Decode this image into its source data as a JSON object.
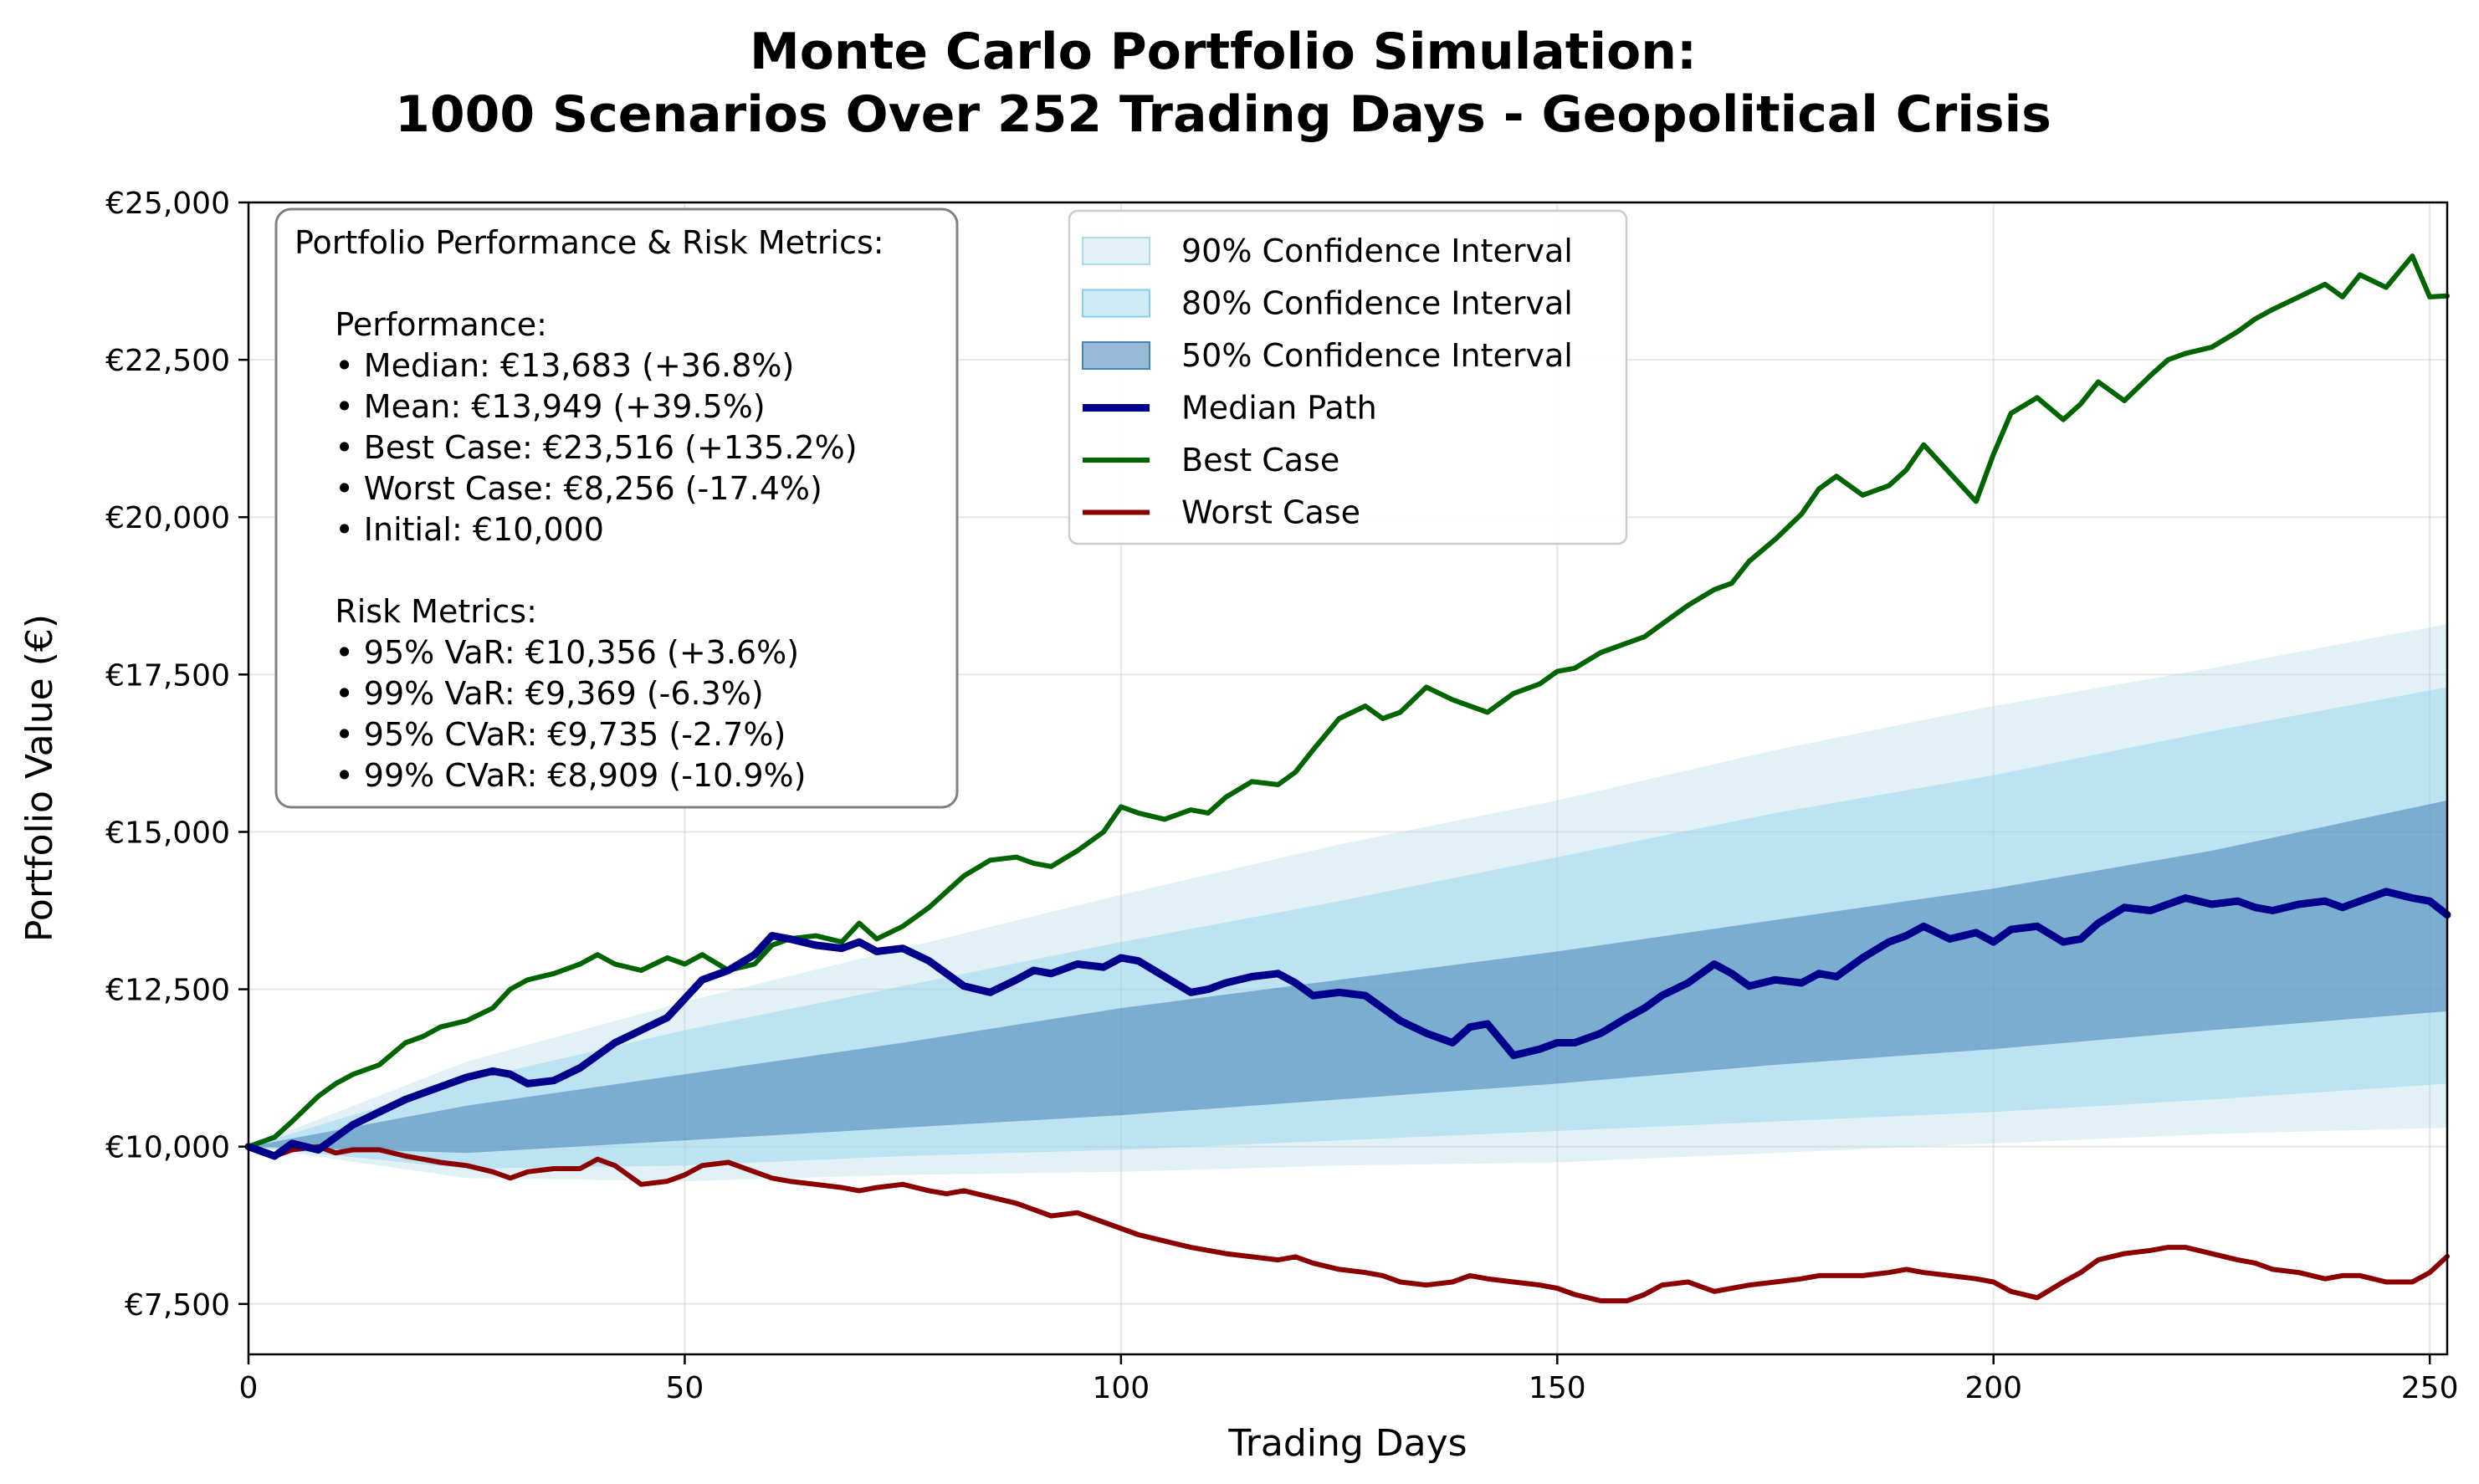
{
  "chart_data": {
    "type": "line",
    "title_lines": [
      "Monte Carlo Portfolio Simulation:",
      "1000 Scenarios Over 252 Trading Days - Geopolitical Crisis"
    ],
    "xlabel": "Trading Days",
    "ylabel": "Portfolio Value (€)",
    "xlim": [
      0,
      252
    ],
    "ylim": [
      6700,
      25000
    ],
    "x_ticks": [
      0,
      50,
      100,
      150,
      200,
      250
    ],
    "x_tick_labels": [
      "0",
      "50",
      "100",
      "150",
      "200",
      "250"
    ],
    "y_ticks": [
      7500,
      10000,
      12500,
      15000,
      17500,
      20000,
      22500,
      25000
    ],
    "y_tick_labels": [
      "€7,500",
      "€10,000",
      "€12,500",
      "€15,000",
      "€17,500",
      "€20,000",
      "€22,500",
      "€25,000"
    ],
    "grid": true,
    "legend_position": "upper-center",
    "legend": [
      {
        "label": "90% Confidence Interval",
        "kind": "band",
        "color": "#add8e6",
        "opacity": 0.35
      },
      {
        "label": "80% Confidence Interval",
        "kind": "band",
        "color": "#87ceeb",
        "opacity": 0.4
      },
      {
        "label": "50% Confidence Interval",
        "kind": "band",
        "color": "#4682b4",
        "opacity": 0.55
      },
      {
        "label": "Median Path",
        "kind": "line",
        "color": "#00008b",
        "width": 9
      },
      {
        "label": "Best Case",
        "kind": "line",
        "color": "#006400",
        "width": 6
      },
      {
        "label": "Worst Case",
        "kind": "line",
        "color": "#8b0000",
        "width": 6
      }
    ],
    "bands": [
      {
        "name": "90% Confidence Interval",
        "color": "#add8e6",
        "opacity": 0.35,
        "x": [
          0,
          25,
          50,
          75,
          100,
          125,
          150,
          175,
          200,
          225,
          252
        ],
        "lower": [
          10000,
          9500,
          9450,
          9550,
          9600,
          9700,
          9750,
          9900,
          10050,
          10200,
          10300
        ],
        "upper": [
          10000,
          11350,
          12300,
          13150,
          14000,
          14800,
          15500,
          16300,
          17000,
          17600,
          18300
        ]
      },
      {
        "name": "80% Confidence Interval",
        "color": "#87ceeb",
        "opacity": 0.4,
        "x": [
          0,
          25,
          50,
          75,
          100,
          125,
          150,
          175,
          200,
          225,
          252
        ],
        "lower": [
          10000,
          9650,
          9700,
          9850,
          9950,
          10100,
          10250,
          10400,
          10550,
          10750,
          11000
        ],
        "upper": [
          10000,
          11050,
          11850,
          12550,
          13250,
          13900,
          14600,
          15300,
          15900,
          16600,
          17300
        ]
      },
      {
        "name": "50% Confidence Interval",
        "color": "#4682b4",
        "opacity": 0.55,
        "x": [
          0,
          25,
          50,
          75,
          100,
          125,
          150,
          175,
          200,
          225,
          252
        ],
        "lower": [
          10000,
          9900,
          10100,
          10300,
          10500,
          10750,
          11000,
          11300,
          11550,
          11850,
          12150
        ],
        "upper": [
          10000,
          10650,
          11150,
          11650,
          12200,
          12650,
          13100,
          13600,
          14100,
          14700,
          15500
        ]
      }
    ],
    "series": [
      {
        "name": "Median Path",
        "color": "#00008b",
        "width": 9,
        "x": [
          0,
          3,
          5,
          8,
          10,
          12,
          15,
          18,
          20,
          22,
          25,
          28,
          30,
          32,
          35,
          38,
          40,
          42,
          45,
          48,
          50,
          52,
          55,
          58,
          60,
          62,
          65,
          68,
          70,
          72,
          75,
          78,
          80,
          82,
          85,
          88,
          90,
          92,
          95,
          98,
          100,
          102,
          105,
          108,
          110,
          112,
          115,
          118,
          120,
          122,
          125,
          128,
          130,
          132,
          135,
          138,
          140,
          142,
          145,
          148,
          150,
          152,
          155,
          158,
          160,
          162,
          165,
          168,
          170,
          172,
          175,
          178,
          180,
          182,
          185,
          188,
          190,
          192,
          195,
          198,
          200,
          202,
          205,
          208,
          210,
          212,
          215,
          218,
          220,
          222,
          225,
          228,
          230,
          232,
          235,
          238,
          240,
          242,
          245,
          248,
          250,
          252
        ],
        "values": [
          10000,
          9850,
          10050,
          9950,
          10150,
          10350,
          10550,
          10750,
          10850,
          10950,
          11100,
          11200,
          11150,
          11000,
          11050,
          11250,
          11450,
          11650,
          11850,
          12050,
          12350,
          12650,
          12800,
          13050,
          13350,
          13300,
          13200,
          13150,
          13250,
          13100,
          13150,
          12950,
          12750,
          12550,
          12450,
          12650,
          12800,
          12750,
          12900,
          12850,
          13000,
          12950,
          12700,
          12450,
          12500,
          12600,
          12700,
          12750,
          12600,
          12400,
          12450,
          12400,
          12200,
          12000,
          11800,
          11650,
          11900,
          11950,
          11450,
          11550,
          11650,
          11650,
          11800,
          12050,
          12200,
          12400,
          12600,
          12900,
          12750,
          12550,
          12650,
          12600,
          12750,
          12700,
          13000,
          13250,
          13350,
          13500,
          13300,
          13400,
          13250,
          13450,
          13500,
          13250,
          13300,
          13550,
          13800,
          13750,
          13850,
          13950,
          13850,
          13900,
          13800,
          13750,
          13850,
          13900,
          13800,
          13900,
          14050,
          13950,
          13900,
          13683
        ]
      },
      {
        "name": "Best Case",
        "color": "#006400",
        "width": 6,
        "x": [
          0,
          3,
          5,
          8,
          10,
          12,
          15,
          18,
          20,
          22,
          25,
          28,
          30,
          32,
          35,
          38,
          40,
          42,
          45,
          48,
          50,
          52,
          55,
          58,
          60,
          62,
          65,
          68,
          70,
          72,
          75,
          78,
          80,
          82,
          85,
          88,
          90,
          92,
          95,
          98,
          100,
          102,
          105,
          108,
          110,
          112,
          115,
          118,
          120,
          122,
          125,
          128,
          130,
          132,
          135,
          138,
          140,
          142,
          145,
          148,
          150,
          152,
          155,
          158,
          160,
          162,
          165,
          168,
          170,
          172,
          175,
          178,
          180,
          182,
          185,
          188,
          190,
          192,
          195,
          198,
          200,
          202,
          205,
          208,
          210,
          212,
          215,
          218,
          220,
          222,
          225,
          228,
          230,
          232,
          235,
          238,
          240,
          242,
          245,
          248,
          250,
          252
        ],
        "values": [
          10000,
          10150,
          10400,
          10800,
          11000,
          11150,
          11300,
          11650,
          11750,
          11900,
          12000,
          12200,
          12500,
          12650,
          12750,
          12900,
          13050,
          12900,
          12800,
          13000,
          12900,
          13050,
          12800,
          12900,
          13200,
          13300,
          13350,
          13250,
          13550,
          13300,
          13500,
          13800,
          14050,
          14300,
          14550,
          14600,
          14500,
          14450,
          14700,
          15000,
          15400,
          15300,
          15200,
          15350,
          15300,
          15550,
          15800,
          15750,
          15950,
          16300,
          16800,
          17000,
          16800,
          16900,
          17300,
          17100,
          17000,
          16900,
          17200,
          17350,
          17550,
          17600,
          17850,
          18000,
          18100,
          18300,
          18600,
          18850,
          18950,
          19300,
          19650,
          20050,
          20450,
          20650,
          20350,
          20500,
          20750,
          21150,
          20700,
          20250,
          21000,
          21650,
          21900,
          21550,
          21800,
          22150,
          21850,
          22250,
          22500,
          22600,
          22700,
          22950,
          23150,
          23300,
          23500,
          23700,
          23500,
          23850,
          23650,
          24150,
          23500,
          23516
        ]
      },
      {
        "name": "Worst Case",
        "color": "#8b0000",
        "width": 6,
        "x": [
          0,
          3,
          5,
          8,
          10,
          12,
          15,
          18,
          20,
          22,
          25,
          28,
          30,
          32,
          35,
          38,
          40,
          42,
          45,
          48,
          50,
          52,
          55,
          58,
          60,
          62,
          65,
          68,
          70,
          72,
          75,
          78,
          80,
          82,
          85,
          88,
          90,
          92,
          95,
          98,
          100,
          102,
          105,
          108,
          110,
          112,
          115,
          118,
          120,
          122,
          125,
          128,
          130,
          132,
          135,
          138,
          140,
          142,
          145,
          148,
          150,
          152,
          155,
          158,
          160,
          162,
          165,
          168,
          170,
          172,
          175,
          178,
          180,
          182,
          185,
          188,
          190,
          192,
          195,
          198,
          200,
          202,
          205,
          208,
          210,
          212,
          215,
          218,
          220,
          222,
          225,
          228,
          230,
          232,
          235,
          238,
          240,
          242,
          245,
          248,
          250,
          252
        ],
        "values": [
          10000,
          9850,
          9950,
          10000,
          9900,
          9950,
          9950,
          9850,
          9800,
          9750,
          9700,
          9600,
          9500,
          9600,
          9650,
          9650,
          9800,
          9700,
          9400,
          9450,
          9550,
          9700,
          9750,
          9600,
          9500,
          9450,
          9400,
          9350,
          9300,
          9350,
          9400,
          9300,
          9250,
          9300,
          9200,
          9100,
          9000,
          8900,
          8950,
          8800,
          8700,
          8600,
          8500,
          8400,
          8350,
          8300,
          8250,
          8200,
          8250,
          8150,
          8050,
          8000,
          7950,
          7850,
          7800,
          7850,
          7950,
          7900,
          7850,
          7800,
          7750,
          7650,
          7550,
          7550,
          7650,
          7800,
          7850,
          7700,
          7750,
          7800,
          7850,
          7900,
          7950,
          7950,
          7950,
          8000,
          8050,
          8000,
          7950,
          7900,
          7850,
          7700,
          7600,
          7850,
          8000,
          8200,
          8300,
          8350,
          8400,
          8400,
          8300,
          8200,
          8150,
          8050,
          8000,
          7900,
          7950,
          7950,
          7850,
          7850,
          8000,
          8256
        ]
      }
    ],
    "annotation": {
      "heading": "Portfolio Performance & Risk Metrics:",
      "lines": [
        "",
        "    Performance:",
        "    • Median: €13,683 (+36.8%)",
        "    • Mean: €13,949 (+39.5%)",
        "    • Best Case: €23,516 (+135.2%)",
        "    • Worst Case: €8,256 (-17.4%)",
        "    • Initial: €10,000",
        "",
        "    Risk Metrics:",
        "    • 95% VaR: €10,356 (+3.6%)",
        "    • 99% VaR: €9,369 (-6.3%)",
        "    • 95% CVaR: €9,735 (-2.7%)",
        "    • 99% CVaR: €8,909 (-10.9%)"
      ]
    }
  }
}
